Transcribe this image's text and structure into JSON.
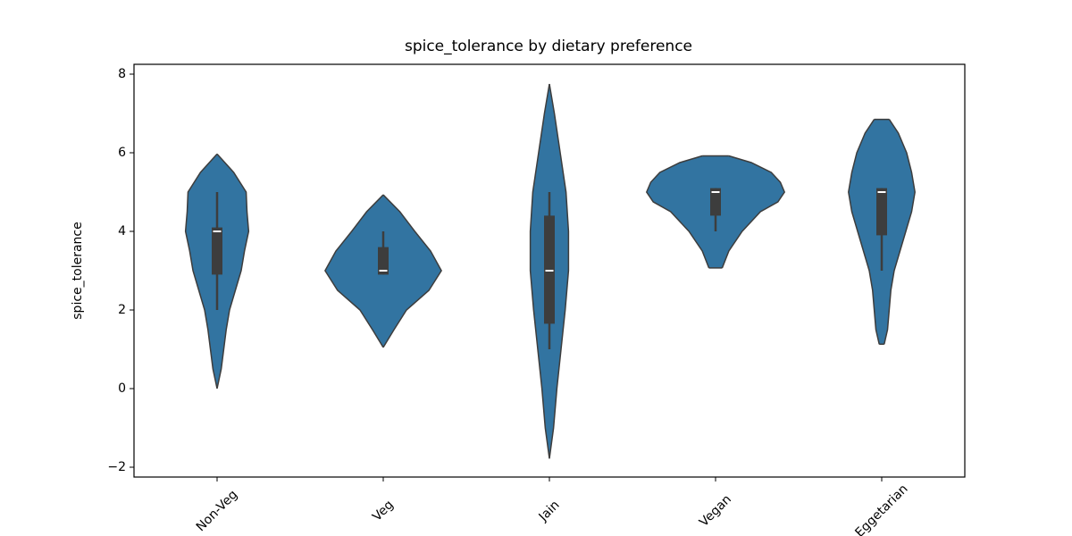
{
  "chart_data": {
    "type": "violin",
    "title": "spice_tolerance by dietary preference",
    "ylabel": "spice_tolerance",
    "categories": [
      "Non-Veg",
      "Veg",
      "Jain",
      "Vegan",
      "Eggetarian"
    ],
    "color": "#3274a1",
    "edge_color": "#3d3d3d",
    "box_color": "#3d3d3d",
    "median_color": "#ffffff",
    "ylim": [
      -2.25,
      8.25
    ],
    "yticks": [
      {
        "value": -2,
        "label": "−2"
      },
      0,
      2,
      4,
      6,
      8
    ],
    "violins": [
      {
        "density_y": [
          5.97,
          5.5,
          5.0,
          4.5,
          4.0,
          3.5,
          3.0,
          2.5,
          2.0,
          1.5,
          1.0,
          0.5,
          0.0
        ],
        "density": [
          0,
          0.2,
          0.35,
          0.36,
          0.38,
          0.33,
          0.29,
          0.22,
          0.15,
          0.11,
          0.08,
          0.05,
          0
        ],
        "whisker_low": 2.0,
        "q1": 2.9,
        "median": 4.0,
        "q3": 4.1,
        "whisker_high": 5.0
      },
      {
        "density_y": [
          4.93,
          4.5,
          4.0,
          3.5,
          3.0,
          2.5,
          2.0,
          1.5,
          1.05
        ],
        "density": [
          0,
          0.2,
          0.38,
          0.57,
          0.7,
          0.55,
          0.28,
          0.13,
          0
        ],
        "whisker_low": 2.9,
        "q1": 2.9,
        "median": 3.0,
        "q3": 3.6,
        "whisker_high": 4.0
      },
      {
        "density_y": [
          7.75,
          7.0,
          6.0,
          5.0,
          4.0,
          3.0,
          2.0,
          1.0,
          0.0,
          -1.0,
          -1.78
        ],
        "density": [
          0,
          0.06,
          0.13,
          0.2,
          0.23,
          0.23,
          0.19,
          0.14,
          0.09,
          0.05,
          0
        ],
        "whisker_low": 1.0,
        "q1": 1.65,
        "median": 3.0,
        "q3": 4.4,
        "whisker_high": 5.0
      },
      {
        "density_y": [
          5.92,
          5.75,
          5.5,
          5.25,
          5.0,
          4.75,
          4.5,
          4.0,
          3.5,
          3.07
        ],
        "density": [
          0.16,
          0.43,
          0.67,
          0.78,
          0.83,
          0.75,
          0.54,
          0.32,
          0.16,
          0.08
        ],
        "whisker_low": 4.0,
        "q1": 4.4,
        "median": 5.0,
        "q3": 5.1,
        "whisker_high": 5.1
      },
      {
        "density_y": [
          6.85,
          6.5,
          6.0,
          5.5,
          5.0,
          4.5,
          4.0,
          3.5,
          3.0,
          2.5,
          2.0,
          1.5,
          1.13
        ],
        "density": [
          0.09,
          0.2,
          0.3,
          0.36,
          0.4,
          0.36,
          0.29,
          0.22,
          0.15,
          0.11,
          0.09,
          0.07,
          0.03
        ],
        "whisker_low": 3.0,
        "q1": 3.9,
        "median": 5.0,
        "q3": 5.1,
        "whisker_high": 5.1
      }
    ]
  }
}
